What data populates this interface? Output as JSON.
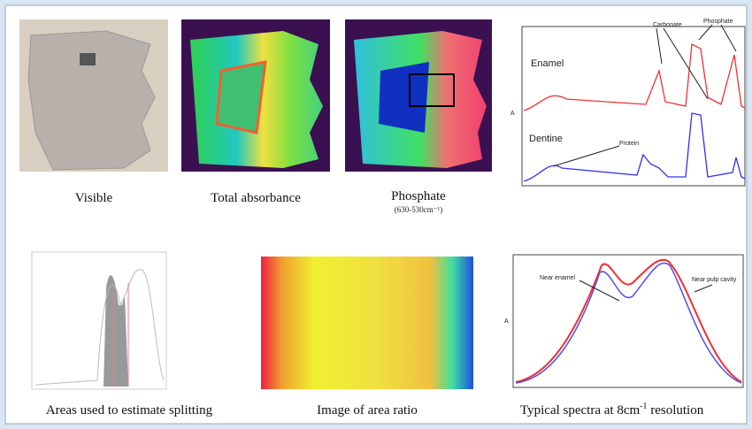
{
  "top_row": [
    {
      "caption": "Visible"
    },
    {
      "caption": "Total absorbance"
    },
    {
      "caption": "Phosphate",
      "subcaption": "(630-530cm⁻¹)"
    }
  ],
  "spectrum": {
    "y_axis": "A",
    "traces": [
      {
        "name": "Enamel"
      },
      {
        "name": "Dentine"
      }
    ],
    "annotations": [
      "Carbonate",
      "Phosphate",
      "Protein"
    ]
  },
  "bottom_row": [
    {
      "caption": "Areas used to estimate splitting"
    },
    {
      "caption": "Image of area ratio"
    },
    {
      "caption_parts": [
        "Typical spectra at 8cm",
        "-1",
        " resolution"
      ]
    }
  ],
  "bottom_spectra": {
    "y_axis": "A",
    "annotations": [
      "Near enamel",
      "Near pulp cavity"
    ]
  }
}
